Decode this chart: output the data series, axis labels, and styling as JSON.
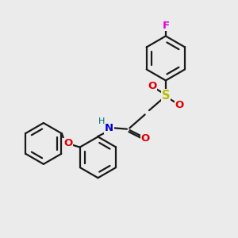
{
  "background_color": "#ebebeb",
  "bond_color": "#1a1a1a",
  "bond_lw": 1.6,
  "atom_colors": {
    "F": "#e000e0",
    "O": "#dd0000",
    "S": "#bbbb00",
    "N": "#0000cc",
    "H": "#007070",
    "C": "#1a1a1a"
  },
  "fs": 9.5,
  "figsize": [
    3.0,
    3.0
  ],
  "dpi": 100
}
